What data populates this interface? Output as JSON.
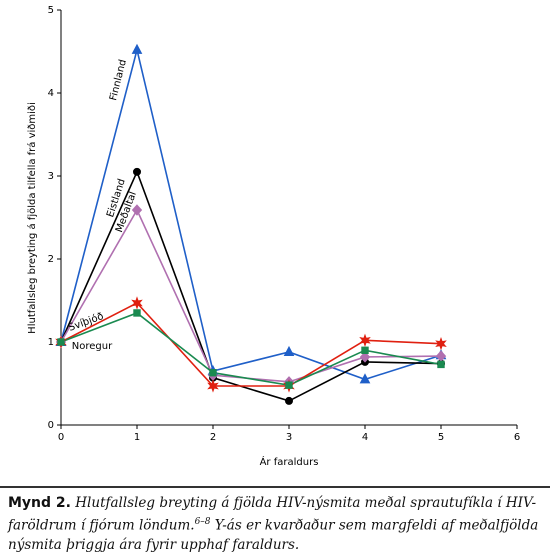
{
  "chart_data": {
    "type": "line",
    "y_label": "Hlutfallsleg breyting á fjölda tilfella frá viðmiði",
    "x_label": "Ár faraldurs",
    "x": [
      0,
      1,
      2,
      3,
      4,
      5
    ],
    "series": [
      {
        "name": "Finnland",
        "color": "#1f5fc8",
        "marker": "triangle",
        "values": [
          1,
          4.52,
          0.65,
          0.88,
          0.55,
          0.84
        ]
      },
      {
        "name": "Eistland",
        "color": "#000000",
        "marker": "circle",
        "values": [
          1,
          3.05,
          0.57,
          0.29,
          0.76,
          0.74
        ]
      },
      {
        "name": "Meðaltal",
        "color": "#b070b0",
        "marker": "diamond",
        "values": [
          1,
          2.59,
          0.6,
          0.52,
          0.82,
          0.83
        ]
      },
      {
        "name": "Svíþjóð",
        "color": "#e02010",
        "marker": "star",
        "values": [
          1,
          1.47,
          0.47,
          0.47,
          1.02,
          0.98
        ]
      },
      {
        "name": "Noregur",
        "color": "#1a8a50",
        "marker": "square",
        "values": [
          1,
          1.35,
          0.63,
          0.48,
          0.9,
          0.73
        ]
      }
    ],
    "xlim": [
      0,
      6
    ],
    "xticks": [
      0,
      1,
      2,
      3,
      4,
      5,
      6
    ],
    "ylim": [
      0,
      5
    ],
    "yticks": [
      0,
      1,
      2,
      3,
      4,
      5
    ]
  },
  "caption": {
    "label": "Mynd 2.",
    "text": "Hlutfallsleg breyting á fjölda HIV-nýsmita meðal sprautufíkla í HIV-faröldrum í fjórum löndum.",
    "ref": "6–8",
    "text2": " Y-ás er kvarðaður sem margfeldi af meðalfjölda nýsmita þriggja ára fyrir upphaf faraldurs."
  }
}
